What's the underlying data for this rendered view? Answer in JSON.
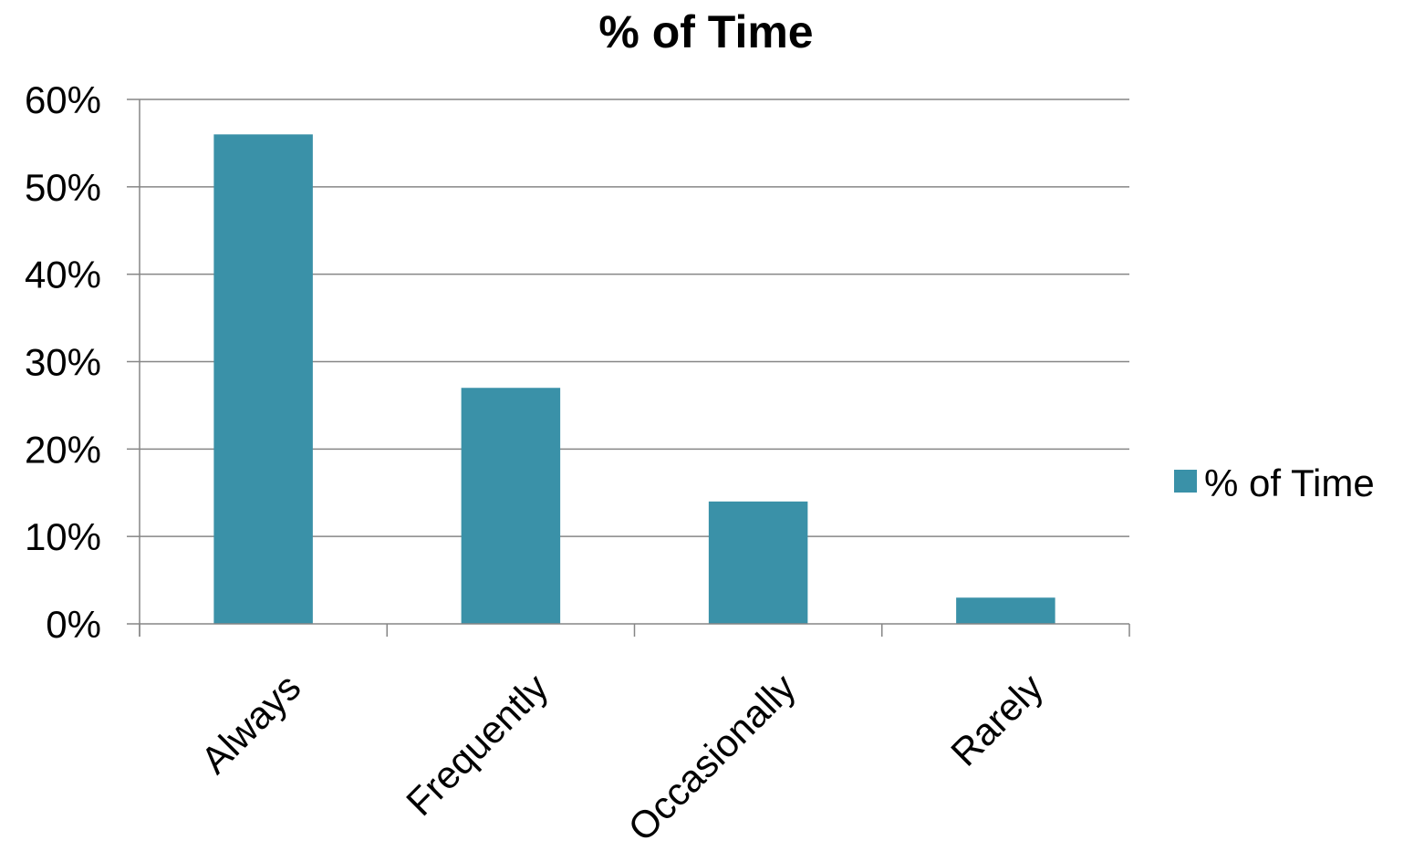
{
  "chart_data": {
    "type": "bar",
    "title": "% of Time",
    "categories": [
      "Always",
      "Frequently",
      "Occasionally",
      "Rarely"
    ],
    "series": [
      {
        "name": "% of Time",
        "values": [
          56,
          27,
          14,
          3
        ],
        "color": "#3a91a8"
      }
    ],
    "ylim": [
      0,
      60
    ],
    "yticks": [
      0,
      10,
      20,
      30,
      40,
      50,
      60
    ],
    "ytick_labels": [
      "0%",
      "10%",
      "20%",
      "30%",
      "40%",
      "50%",
      "60%"
    ],
    "xlabel": "",
    "ylabel": "",
    "grid": true,
    "gridline_color": "#868686",
    "axis_color": "#868686",
    "legend_position": "right"
  }
}
